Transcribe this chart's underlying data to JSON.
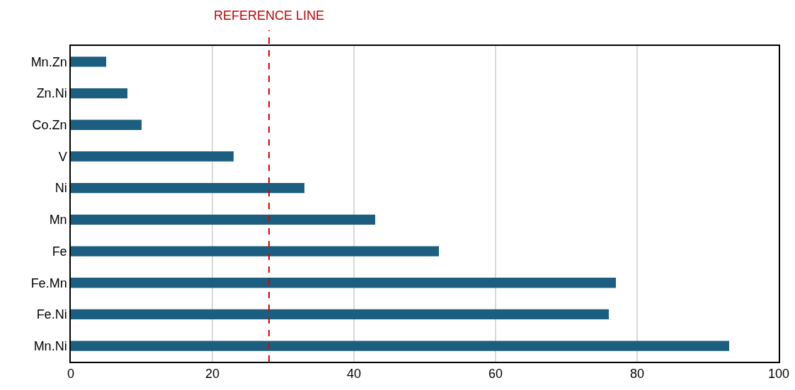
{
  "chart_data": {
    "type": "bar",
    "orientation": "horizontal",
    "categories": [
      "Mn.Zn",
      "Zn.Ni",
      "Co.Zn",
      "V",
      "Ni",
      "Mn",
      "Fe",
      "Fe.Mn",
      "Fe.Ni",
      "Mn.Ni"
    ],
    "values": [
      5,
      8,
      10,
      23,
      33,
      43,
      52,
      77,
      76,
      93
    ],
    "color": "#1b5e80",
    "xlim": [
      0,
      100
    ],
    "xticks": [
      0,
      20,
      40,
      60,
      80,
      100
    ],
    "grid": "x",
    "legend": false,
    "ref_lines": [
      {
        "axis": "x",
        "value": 28,
        "label": "REFERENCE LINE",
        "color": "#e00000",
        "line_style": "dashed"
      }
    ]
  }
}
